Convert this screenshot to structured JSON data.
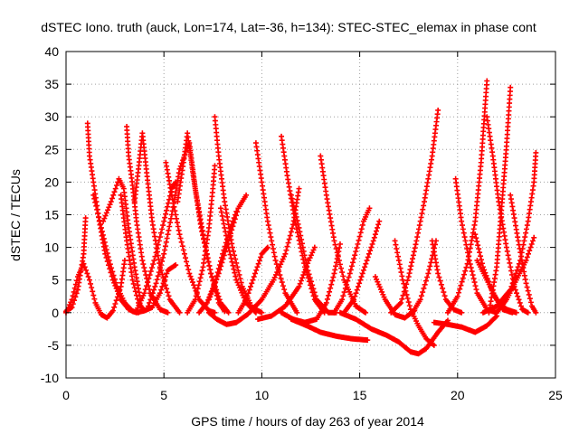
{
  "chart_data": {
    "type": "scatter",
    "title": "dSTEC Iono. truth (auck, Lon=174, Lat=-36, h=134): STEC-STEC_elemax in phase cont",
    "xlabel": "GPS time / hours of day 263 of year 2014",
    "ylabel": "dSTEC  / TECUs",
    "xlim": [
      0,
      25
    ],
    "ylim": [
      -10,
      40
    ],
    "x_ticks": [
      0,
      5,
      10,
      15,
      20,
      25
    ],
    "y_ticks": [
      -10,
      -5,
      0,
      5,
      10,
      15,
      20,
      25,
      30,
      35,
      40
    ],
    "grid": true,
    "marker": "+",
    "color": "#ff0000",
    "series": [
      {
        "values": [
          [
            0.0,
            0.2
          ],
          [
            0.3,
            0.8
          ],
          [
            0.6,
            3.5
          ],
          [
            0.9,
            9.0
          ],
          [
            1.0,
            14.5
          ]
        ]
      },
      {
        "values": [
          [
            0.0,
            0.0
          ],
          [
            0.3,
            2.0
          ],
          [
            0.6,
            5.5
          ],
          [
            0.9,
            7.5
          ],
          [
            1.2,
            5.0
          ],
          [
            1.5,
            1.5
          ],
          [
            1.8,
            -0.3
          ],
          [
            2.1,
            -0.8
          ],
          [
            2.4,
            0.3
          ],
          [
            2.8,
            4.0
          ],
          [
            3.0,
            8.0
          ]
        ]
      },
      {
        "values": [
          [
            1.1,
            29.0
          ],
          [
            1.2,
            24.0
          ],
          [
            1.4,
            20.0
          ],
          [
            1.7,
            14.0
          ],
          [
            2.0,
            9.0
          ],
          [
            2.4,
            5.0
          ],
          [
            2.8,
            2.0
          ],
          [
            3.2,
            0.5
          ],
          [
            3.6,
            0.0
          ],
          [
            4.0,
            0.3
          ]
        ]
      },
      {
        "values": [
          [
            1.4,
            18.0
          ],
          [
            1.8,
            13.0
          ],
          [
            2.2,
            8.0
          ],
          [
            2.6,
            4.0
          ],
          [
            3.0,
            1.5
          ],
          [
            3.4,
            0.2
          ],
          [
            3.7,
            0.0
          ]
        ]
      },
      {
        "values": [
          [
            1.9,
            14.0
          ],
          [
            2.3,
            17.0
          ],
          [
            2.7,
            20.5
          ],
          [
            2.95,
            19.0
          ],
          [
            3.2,
            13.0
          ],
          [
            3.5,
            7.0
          ],
          [
            3.8,
            2.0
          ]
        ]
      },
      {
        "values": [
          [
            3.1,
            28.5
          ],
          [
            3.2,
            24.0
          ],
          [
            3.4,
            19.5
          ],
          [
            3.6,
            14.0
          ],
          [
            3.9,
            8.0
          ],
          [
            4.3,
            3.0
          ],
          [
            4.8,
            0.5
          ],
          [
            5.2,
            0.0
          ]
        ]
      },
      {
        "values": [
          [
            3.5,
            17.0
          ],
          [
            3.7,
            22.0
          ],
          [
            3.9,
            27.5
          ],
          [
            4.1,
            22.0
          ],
          [
            4.4,
            14.0
          ],
          [
            4.8,
            7.0
          ],
          [
            5.3,
            2.0
          ],
          [
            5.8,
            0.0
          ]
        ]
      },
      {
        "values": [
          [
            2.8,
            18.0
          ],
          [
            3.1,
            11.0
          ],
          [
            3.4,
            5.0
          ],
          [
            3.7,
            1.5
          ],
          [
            4.0,
            0.3
          ],
          [
            4.4,
            0.8
          ],
          [
            4.8,
            3.0
          ],
          [
            5.2,
            6.5
          ],
          [
            5.6,
            7.3
          ]
        ]
      },
      {
        "values": [
          [
            3.6,
            0.3
          ],
          [
            4.0,
            3.0
          ],
          [
            4.5,
            8.0
          ],
          [
            5.0,
            14.0
          ],
          [
            5.4,
            19.0
          ],
          [
            5.6,
            20.0
          ]
        ]
      },
      {
        "values": [
          [
            5.1,
            23.0
          ],
          [
            5.4,
            18.0
          ],
          [
            5.8,
            12.0
          ],
          [
            6.3,
            6.0
          ],
          [
            6.8,
            2.0
          ],
          [
            7.3,
            0.3
          ],
          [
            7.6,
            0.0
          ]
        ]
      },
      {
        "values": [
          [
            5.7,
            17.0
          ],
          [
            6.0,
            23.0
          ],
          [
            6.2,
            27.5
          ],
          [
            6.5,
            21.0
          ],
          [
            6.9,
            13.0
          ],
          [
            7.4,
            6.0
          ],
          [
            7.9,
            1.5
          ],
          [
            8.3,
            0.0
          ]
        ]
      },
      {
        "values": [
          [
            4.2,
            1.0
          ],
          [
            4.6,
            4.5
          ],
          [
            5.0,
            9.0
          ],
          [
            5.4,
            15.0
          ],
          [
            5.8,
            22.0
          ],
          [
            6.3,
            26.0
          ],
          [
            6.6,
            19.0
          ],
          [
            7.0,
            12.0
          ],
          [
            7.4,
            6.0
          ],
          [
            7.8,
            1.5
          ],
          [
            8.1,
            0.2
          ]
        ]
      },
      {
        "values": [
          [
            6.2,
            0.0
          ],
          [
            6.6,
            2.0
          ],
          [
            7.0,
            7.0
          ],
          [
            7.3,
            13.0
          ],
          [
            7.5,
            19.0
          ],
          [
            7.6,
            22.5
          ]
        ]
      },
      {
        "values": [
          [
            7.6,
            30.0
          ],
          [
            7.8,
            24.0
          ],
          [
            8.1,
            17.0
          ],
          [
            8.5,
            10.0
          ],
          [
            9.0,
            4.0
          ],
          [
            9.5,
            0.8
          ],
          [
            10.0,
            0.0
          ]
        ]
      },
      {
        "values": [
          [
            7.9,
            16.0
          ],
          [
            8.3,
            10.0
          ],
          [
            8.7,
            5.0
          ],
          [
            9.2,
            1.5
          ],
          [
            9.7,
            0.0
          ]
        ]
      },
      {
        "values": [
          [
            6.8,
            0.0
          ],
          [
            7.2,
            1.5
          ],
          [
            7.6,
            4.5
          ],
          [
            8.0,
            9.0
          ],
          [
            8.4,
            13.0
          ],
          [
            8.7,
            15.5
          ]
        ]
      },
      {
        "values": [
          [
            7.3,
            2.0
          ],
          [
            7.8,
            6.0
          ],
          [
            8.3,
            11.0
          ],
          [
            8.8,
            16.0
          ],
          [
            9.2,
            18.0
          ]
        ]
      },
      {
        "values": [
          [
            8.8,
            0.0
          ],
          [
            9.2,
            2.0
          ],
          [
            9.6,
            5.5
          ],
          [
            10.0,
            9.0
          ],
          [
            10.3,
            10.0
          ]
        ]
      },
      {
        "values": [
          [
            9.7,
            26.0
          ],
          [
            10.0,
            20.0
          ],
          [
            10.3,
            14.0
          ],
          [
            10.7,
            8.0
          ],
          [
            11.2,
            3.0
          ],
          [
            11.8,
            0.0
          ]
        ]
      },
      {
        "values": [
          [
            7.3,
            0.0
          ],
          [
            7.7,
            -1.0
          ],
          [
            8.2,
            -1.8
          ],
          [
            8.7,
            -1.5
          ],
          [
            9.3,
            -0.2
          ],
          [
            10.0,
            2.0
          ],
          [
            10.6,
            5.0
          ],
          [
            11.2,
            9.0
          ],
          [
            11.6,
            13.5
          ],
          [
            11.9,
            19.0
          ]
        ]
      },
      {
        "values": [
          [
            11.0,
            27.0
          ],
          [
            11.3,
            21.0
          ],
          [
            11.7,
            14.0
          ],
          [
            12.2,
            7.0
          ],
          [
            12.7,
            2.0
          ],
          [
            13.2,
            0.0
          ]
        ]
      },
      {
        "values": [
          [
            9.8,
            -1.0
          ],
          [
            10.5,
            -0.5
          ],
          [
            11.2,
            1.0
          ],
          [
            11.9,
            4.0
          ],
          [
            12.4,
            8.0
          ],
          [
            12.7,
            10.0
          ]
        ]
      },
      {
        "values": [
          [
            11.5,
            18.0
          ],
          [
            11.9,
            13.0
          ],
          [
            12.3,
            7.0
          ],
          [
            12.8,
            2.0
          ],
          [
            13.4,
            0.0
          ],
          [
            13.8,
            0.0
          ]
        ]
      },
      {
        "values": [
          [
            13.0,
            24.0
          ],
          [
            13.3,
            18.0
          ],
          [
            13.7,
            11.0
          ],
          [
            14.2,
            5.0
          ],
          [
            14.8,
            1.0
          ],
          [
            15.3,
            0.0
          ]
        ]
      },
      {
        "values": [
          [
            11.0,
            0.0
          ],
          [
            11.6,
            -1.0
          ],
          [
            12.2,
            -1.5
          ],
          [
            12.8,
            -1.0
          ],
          [
            13.3,
            1.5
          ],
          [
            13.7,
            6.0
          ],
          [
            14.0,
            10.5
          ]
        ]
      },
      {
        "values": [
          [
            13.7,
            0.0
          ],
          [
            14.1,
            2.0
          ],
          [
            14.5,
            6.0
          ],
          [
            14.9,
            10.5
          ],
          [
            15.2,
            14.0
          ],
          [
            15.5,
            16.0
          ]
        ]
      },
      {
        "values": [
          [
            11.5,
            -1.0
          ],
          [
            12.3,
            -2.0
          ],
          [
            13.0,
            -3.0
          ],
          [
            13.8,
            -3.6
          ],
          [
            14.6,
            -4.0
          ],
          [
            15.4,
            -4.2
          ]
        ]
      },
      {
        "values": [
          [
            14.2,
            0.0
          ],
          [
            14.7,
            2.0
          ],
          [
            15.2,
            6.5
          ],
          [
            15.7,
            11.0
          ],
          [
            16.0,
            14.0
          ]
        ]
      },
      {
        "values": [
          [
            15.8,
            5.5
          ],
          [
            16.3,
            2.0
          ],
          [
            16.8,
            -0.3
          ],
          [
            17.3,
            -0.8
          ],
          [
            17.8,
            0.3
          ]
        ]
      },
      {
        "values": [
          [
            14.0,
            0.0
          ],
          [
            14.8,
            -1.0
          ],
          [
            15.6,
            -2.5
          ],
          [
            16.4,
            -3.5
          ],
          [
            17.0,
            -4.5
          ],
          [
            17.6,
            -6.0
          ],
          [
            18.0,
            -6.3
          ],
          [
            18.4,
            -5.5
          ],
          [
            19.0,
            -3.0
          ],
          [
            19.5,
            -1.2
          ]
        ]
      },
      {
        "values": [
          [
            16.8,
            11.0
          ],
          [
            17.2,
            5.0
          ],
          [
            17.6,
            0.5
          ],
          [
            18.0,
            -2.0
          ],
          [
            18.4,
            -4.0
          ],
          [
            18.8,
            -5.0
          ]
        ]
      },
      {
        "values": [
          [
            16.6,
            0.0
          ],
          [
            17.1,
            1.5
          ],
          [
            17.5,
            5.5
          ],
          [
            17.9,
            11.0
          ],
          [
            18.3,
            17.0
          ],
          [
            18.7,
            24.0
          ],
          [
            19.0,
            31.0
          ]
        ]
      },
      {
        "values": [
          [
            17.7,
            0.0
          ],
          [
            18.1,
            2.0
          ],
          [
            18.5,
            6.0
          ],
          [
            18.9,
            11.0
          ]
        ]
      },
      {
        "values": [
          [
            18.7,
            11.0
          ],
          [
            19.0,
            6.0
          ],
          [
            19.4,
            2.0
          ],
          [
            19.8,
            0.5
          ],
          [
            20.2,
            0.0
          ]
        ]
      },
      {
        "values": [
          [
            19.9,
            20.5
          ],
          [
            20.2,
            14.0
          ],
          [
            20.6,
            8.0
          ],
          [
            21.0,
            3.0
          ],
          [
            21.5,
            0.5
          ],
          [
            22.0,
            0.0
          ]
        ]
      },
      {
        "values": [
          [
            18.8,
            -1.5
          ],
          [
            19.5,
            -1.8
          ],
          [
            20.2,
            -2.2
          ],
          [
            20.9,
            -3.0
          ],
          [
            21.5,
            -2.0
          ],
          [
            22.0,
            -0.5
          ]
        ]
      },
      {
        "values": [
          [
            19.5,
            0.0
          ],
          [
            20.0,
            2.5
          ],
          [
            20.5,
            7.5
          ],
          [
            20.9,
            14.0
          ],
          [
            21.2,
            23.0
          ],
          [
            21.5,
            35.5
          ]
        ]
      },
      {
        "values": [
          [
            21.5,
            30.0
          ],
          [
            21.8,
            24.0
          ],
          [
            22.1,
            17.0
          ],
          [
            22.5,
            10.0
          ],
          [
            22.9,
            4.0
          ],
          [
            23.3,
            0.5
          ],
          [
            23.6,
            0.0
          ]
        ]
      },
      {
        "values": [
          [
            20.9,
            12.0
          ],
          [
            21.3,
            7.0
          ],
          [
            21.8,
            3.0
          ],
          [
            22.3,
            0.5
          ],
          [
            22.8,
            0.0
          ]
        ]
      },
      {
        "values": [
          [
            21.6,
            0.0
          ],
          [
            22.0,
            7.0
          ],
          [
            22.3,
            18.0
          ],
          [
            22.5,
            25.5
          ],
          [
            22.7,
            34.5
          ]
        ]
      },
      {
        "values": [
          [
            22.7,
            18.0
          ],
          [
            23.1,
            11.0
          ],
          [
            23.5,
            4.5
          ],
          [
            23.8,
            1.0
          ],
          [
            24.0,
            0.0
          ]
        ]
      },
      {
        "values": [
          [
            22.0,
            0.0
          ],
          [
            22.5,
            2.0
          ],
          [
            23.0,
            5.0
          ],
          [
            23.5,
            8.0
          ],
          [
            23.9,
            11.5
          ]
        ]
      },
      {
        "values": [
          [
            21.3,
            0.0
          ],
          [
            22.0,
            1.0
          ],
          [
            22.7,
            3.5
          ],
          [
            23.2,
            8.0
          ],
          [
            23.6,
            14.0
          ],
          [
            23.9,
            20.0
          ],
          [
            24.0,
            24.5
          ]
        ]
      },
      {
        "values": [
          [
            21.0,
            8.0
          ],
          [
            21.5,
            5.0
          ],
          [
            22.0,
            2.0
          ],
          [
            22.5,
            0.5
          ],
          [
            23.0,
            0.0
          ]
        ]
      }
    ]
  }
}
